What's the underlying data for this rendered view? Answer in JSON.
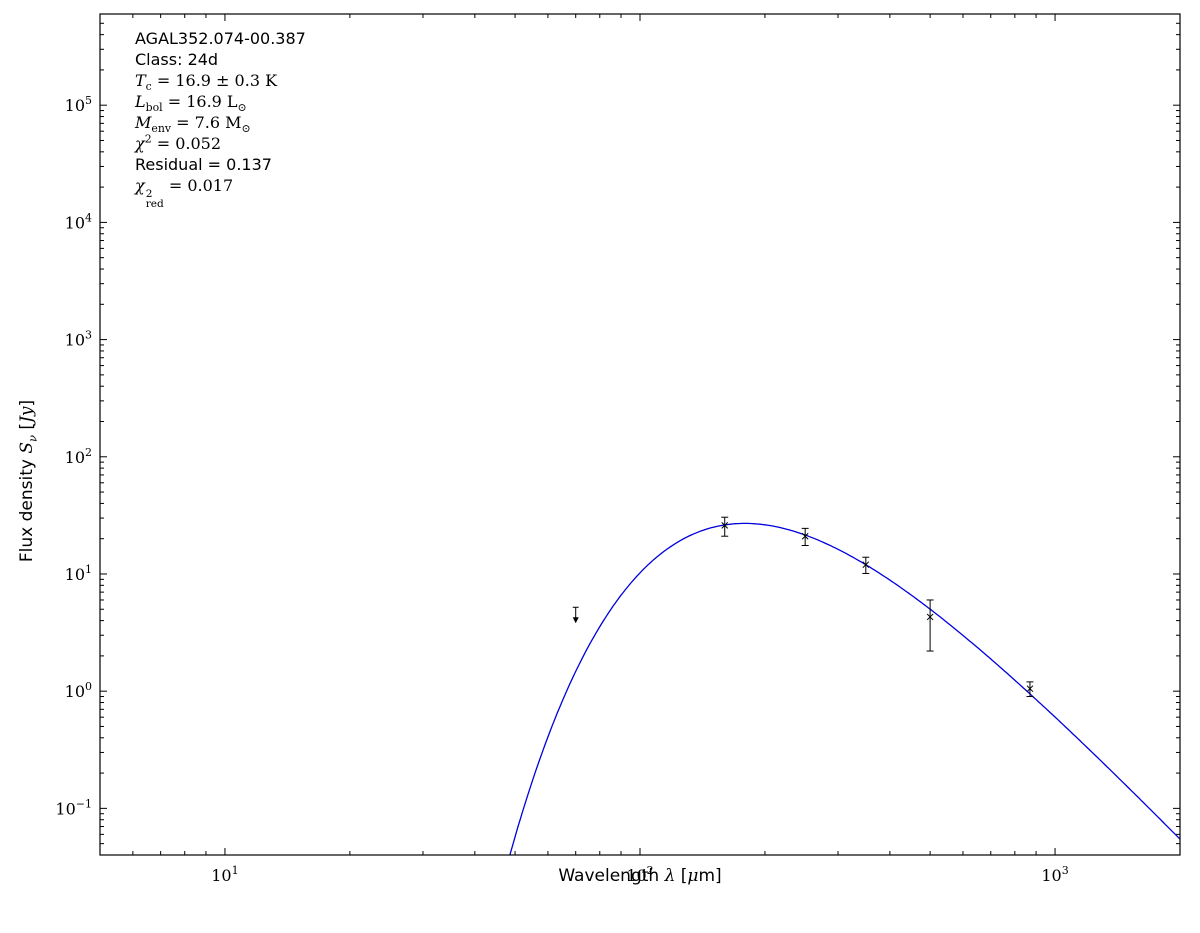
{
  "page": {
    "background": "#ffffff",
    "frame_color": "#000000"
  },
  "chart_data": {
    "type": "line",
    "title": "",
    "xlabel": "Wavelength λ [μm]",
    "ylabel": "Flux density S_ν [Jy]",
    "grid": false,
    "legend": "none",
    "x_axis": {
      "scale": "log",
      "min": 5,
      "max": 2000,
      "tick_exponents": [
        1,
        2,
        3
      ]
    },
    "y_axis": {
      "scale": "log",
      "min": 0.04,
      "max": 600000,
      "tick_exponents": [
        -1,
        0,
        1,
        2,
        3,
        4,
        5
      ]
    },
    "frame_color": "#000000",
    "xlabel_segments": [
      {
        "t": "Wavelength "
      },
      {
        "t": "λ",
        "serif": true,
        "i": true
      },
      {
        "t": " ["
      },
      {
        "t": "μ",
        "serif": true,
        "i": true
      },
      {
        "t": "m]"
      }
    ],
    "ylabel_segments": [
      {
        "t": "Flux density "
      },
      {
        "t": "S",
        "serif": true,
        "i": true
      },
      {
        "t": "ν",
        "serif": true,
        "i": true,
        "sub": true
      },
      {
        "t": " ["
      },
      {
        "t": "Jy",
        "serif": true,
        "i": true
      },
      {
        "t": "]"
      }
    ],
    "annotations": [
      {
        "cls": "sans",
        "segments": [
          {
            "t": "AGAL352.074-00.387"
          }
        ]
      },
      {
        "cls": "sans",
        "segments": [
          {
            "t": "Class: 24d"
          }
        ]
      },
      {
        "cls": "serif",
        "segments": [
          {
            "t": "T",
            "i": true
          },
          {
            "t": "c",
            "sub": true
          },
          {
            "t": " = 16.9 ± 0.3 K"
          }
        ]
      },
      {
        "cls": "serif",
        "segments": [
          {
            "t": "L",
            "i": true
          },
          {
            "t": "bol",
            "sub": true
          },
          {
            "t": " = 16.9 L"
          },
          {
            "t": "⊙",
            "sub": true
          }
        ]
      },
      {
        "cls": "serif",
        "segments": [
          {
            "t": "M",
            "i": true
          },
          {
            "t": "env",
            "sub": true
          },
          {
            "t": " = 7.6 M"
          },
          {
            "t": "⊙",
            "sub": true
          }
        ]
      },
      {
        "cls": "serif",
        "segments": [
          {
            "t": "χ",
            "i": true
          },
          {
            "t": "2",
            "sup": true
          },
          {
            "t": " = 0.052"
          }
        ]
      },
      {
        "cls": "sans",
        "segments": [
          {
            "t": "Residual = 0.137"
          }
        ]
      },
      {
        "cls": "serif",
        "segments": [
          {
            "t": "χ",
            "i": true
          },
          {
            "stack": {
              "sup": "2",
              "sub": "red"
            }
          },
          {
            "t": " = 0.017"
          }
        ]
      }
    ],
    "fit_values": {
      "source": "AGAL352.074-00.387",
      "class": "24d",
      "T_c_K": "16.9 ± 0.3",
      "L_bol_Lsun": 16.9,
      "M_env_Msun": 7.6,
      "chi2": 0.052,
      "residual": 0.137,
      "chi2_red": 0.017
    },
    "series": [
      {
        "name": "greybody_fit",
        "type": "curve",
        "color": "#0000dd",
        "model": {
          "kind": "modified_blackbody",
          "T_K": 16.9,
          "beta": 1.8,
          "peak_flux_Jy": 27,
          "peak_wavelength_um": 178,
          "lambda_min_um": 45,
          "lambda_max_um": 2000
        }
      },
      {
        "name": "photometry",
        "type": "errorbar",
        "color": "#000000",
        "marker": "x",
        "points": [
          {
            "wavelength_um": 160,
            "flux_Jy": 26,
            "err_lo": 5,
            "err_hi": 4.5
          },
          {
            "wavelength_um": 250,
            "flux_Jy": 21,
            "err_lo": 3.5,
            "err_hi": 3.5
          },
          {
            "wavelength_um": 350,
            "flux_Jy": 12,
            "err_lo": 1.9,
            "err_hi": 1.9
          },
          {
            "wavelength_um": 500,
            "flux_Jy": 4.3,
            "err_lo": 2.1,
            "err_hi": 1.7
          },
          {
            "wavelength_um": 870,
            "flux_Jy": 1.05,
            "err_lo": 0.15,
            "err_hi": 0.15
          }
        ]
      },
      {
        "name": "upper_limit",
        "type": "upper_limit",
        "color": "#000000",
        "points": [
          {
            "wavelength_um": 70,
            "flux_Jy": 5.2
          }
        ]
      }
    ]
  }
}
